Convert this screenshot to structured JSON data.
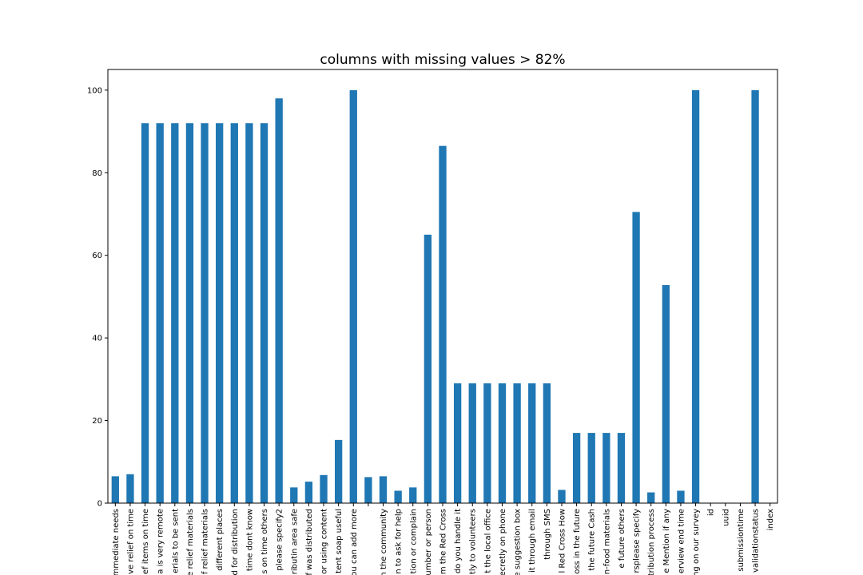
{
  "colors": {
    "bar": "#1f77b4",
    "axis": "#000000",
    "background": "#ffffff"
  },
  "chart_data": {
    "type": "bar",
    "title": "columns with missing values > 82%",
    "xlabel": "",
    "ylabel": "",
    "ylim": [
      0,
      105
    ],
    "yticks": [
      0,
      20,
      40,
      60,
      80,
      100
    ],
    "grid": false,
    "legend": "none",
    "categories": [
      "mmediate needs",
      "ve relief on time",
      "ef items on time",
      "a is very remote",
      "erials to be sent",
      "e relief materials",
      "f relief materials",
      " different places",
      "d for distribution",
      "time  dont know",
      "s on time others",
      "please specify2",
      "ributin area safe",
      "f was distributed",
      "or using content",
      "tent soap useful",
      "ou can add more",
      "",
      "n the community",
      "n to ask for help",
      "tion or complain",
      "umber or person",
      "m the Red Cross",
      "do you handle it",
      "tly to volunteers",
      "t the local office",
      "ecretly on phone",
      "e suggestion box",
      "it through email",
      " through SMS",
      "l Red Cross How",
      "oss in the future",
      "the future  Cash",
      "n-food materials",
      "e future   others",
      "rsplease specify",
      "tribution process",
      "e Mention if any",
      "erview end time",
      "ng on our survey",
      "id",
      "uuid",
      "submissiontime",
      "validationstatus",
      "index"
    ],
    "values": [
      6.5,
      7.0,
      92.0,
      92.0,
      92.0,
      92.0,
      92.0,
      92.0,
      92.0,
      92.0,
      92.0,
      98.0,
      3.8,
      5.2,
      6.8,
      15.3,
      100.0,
      6.3,
      6.5,
      3.0,
      3.8,
      65.0,
      86.5,
      29.0,
      29.0,
      29.0,
      29.0,
      29.0,
      29.0,
      29.0,
      3.2,
      17.0,
      17.0,
      17.0,
      17.0,
      70.5,
      2.6,
      52.8,
      3.0,
      100.0,
      0,
      0,
      0,
      100.0,
      0
    ]
  }
}
